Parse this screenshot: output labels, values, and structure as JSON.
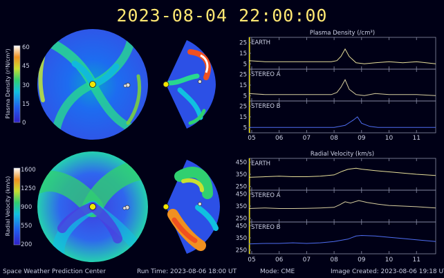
{
  "header": {
    "timestamp": "2023-08-04 22:00:00"
  },
  "colorbars": [
    {
      "label": "Plasma Density (r²N/cm³)",
      "ticks": [
        "60",
        "45",
        "30",
        "15",
        "0"
      ],
      "range": [
        0,
        60
      ]
    },
    {
      "label": "Radial Velocity (km/s)",
      "ticks": [
        "1600",
        "1250",
        "900",
        "550",
        "200"
      ],
      "range": [
        200,
        1600
      ]
    }
  ],
  "footer": {
    "center": "Space Weather Prediction Center",
    "run_time": "Run Time: 2023-08-06 18:00 UT",
    "mode": "Mode: CME",
    "created": "Image Created: 2023-08-06 19:18 UT"
  },
  "colors": {
    "earth": "#e8e09a",
    "stereo_a": "#d8cfa0",
    "stereo_b": "#4f6ef2",
    "title": "#ffe873",
    "marker": "#f3e600"
  },
  "chart_data": [
    {
      "type": "line",
      "title": "Plasma Density (/cm³)",
      "x_ticks": [
        "05",
        "06",
        "07",
        "08",
        "09",
        "10",
        "11"
      ],
      "xlim": [
        4.9,
        11.7
      ],
      "current_time": 4.92,
      "panels": [
        {
          "name": "EARTH",
          "color": "#e8e09a",
          "ylim": [
            0,
            30
          ],
          "y_ticks": [
            "25",
            "15",
            "5"
          ],
          "x": [
            4.9,
            5.5,
            6.0,
            6.5,
            7.0,
            7.5,
            7.9,
            8.1,
            8.25,
            8.4,
            8.55,
            8.8,
            9.1,
            9.5,
            10.0,
            10.5,
            11.0,
            11.7
          ],
          "y": [
            8,
            7,
            7,
            7,
            7,
            7,
            7,
            8,
            12,
            19,
            12,
            6,
            5,
            6,
            7,
            6,
            7,
            5
          ]
        },
        {
          "name": "STEREO A",
          "color": "#d8cfa0",
          "ylim": [
            0,
            30
          ],
          "y_ticks": [
            "25",
            "15",
            "5"
          ],
          "x": [
            4.9,
            5.5,
            6.0,
            6.5,
            7.0,
            7.5,
            7.9,
            8.1,
            8.25,
            8.4,
            8.55,
            8.8,
            9.1,
            9.5,
            10.0,
            10.5,
            11.0,
            11.7
          ],
          "y": [
            7,
            6,
            6,
            6,
            6,
            6,
            6,
            8,
            13,
            20,
            11,
            6,
            5,
            7,
            6,
            6,
            6,
            5
          ]
        },
        {
          "name": "STEREO B",
          "color": "#4f6ef2",
          "ylim": [
            0,
            30
          ],
          "y_ticks": [
            "25",
            "15",
            "5"
          ],
          "x": [
            4.9,
            5.5,
            6.0,
            6.5,
            7.0,
            7.5,
            8.0,
            8.4,
            8.7,
            8.85,
            9.0,
            9.3,
            9.6,
            10.0,
            10.5,
            11.0,
            11.7
          ],
          "y": [
            5,
            5,
            5,
            5,
            5,
            5,
            5,
            7,
            12,
            15,
            9,
            6,
            5,
            5,
            5,
            5,
            5
          ]
        }
      ]
    },
    {
      "type": "line",
      "title": "Radial Velocity (km/s)",
      "x_ticks": [
        "05",
        "06",
        "07",
        "08",
        "09",
        "10",
        "11"
      ],
      "xlim": [
        4.9,
        11.7
      ],
      "current_time": 4.92,
      "panels": [
        {
          "name": "EARTH",
          "color": "#e8e09a",
          "ylim": [
            220,
            480
          ],
          "y_ticks": [
            "450",
            "350",
            "250"
          ],
          "x": [
            4.9,
            5.5,
            6.0,
            6.5,
            7.0,
            7.5,
            8.0,
            8.3,
            8.5,
            8.8,
            9.0,
            9.5,
            10.0,
            10.5,
            11.0,
            11.7
          ],
          "y": [
            325,
            330,
            335,
            330,
            330,
            335,
            345,
            375,
            390,
            400,
            392,
            380,
            370,
            360,
            350,
            340
          ]
        },
        {
          "name": "STEREO A",
          "color": "#d8cfa0",
          "ylim": [
            220,
            480
          ],
          "y_ticks": [
            "450",
            "350",
            "250"
          ],
          "x": [
            4.9,
            5.5,
            6.0,
            6.5,
            7.0,
            7.5,
            8.0,
            8.2,
            8.4,
            8.6,
            8.9,
            9.2,
            9.6,
            10.0,
            10.5,
            11.0,
            11.7
          ],
          "y": [
            330,
            335,
            330,
            330,
            332,
            335,
            340,
            360,
            385,
            375,
            395,
            380,
            365,
            355,
            350,
            345,
            335
          ]
        },
        {
          "name": "STEREO B",
          "color": "#4f6ef2",
          "ylim": [
            220,
            480
          ],
          "y_ticks": [
            "450",
            "350",
            "250"
          ],
          "x": [
            4.9,
            5.5,
            6.0,
            6.5,
            7.0,
            7.5,
            8.0,
            8.5,
            8.8,
            9.0,
            9.5,
            10.0,
            10.5,
            11.0,
            11.7
          ],
          "y": [
            300,
            305,
            305,
            310,
            305,
            310,
            320,
            340,
            365,
            370,
            365,
            355,
            345,
            335,
            320
          ]
        }
      ]
    }
  ]
}
